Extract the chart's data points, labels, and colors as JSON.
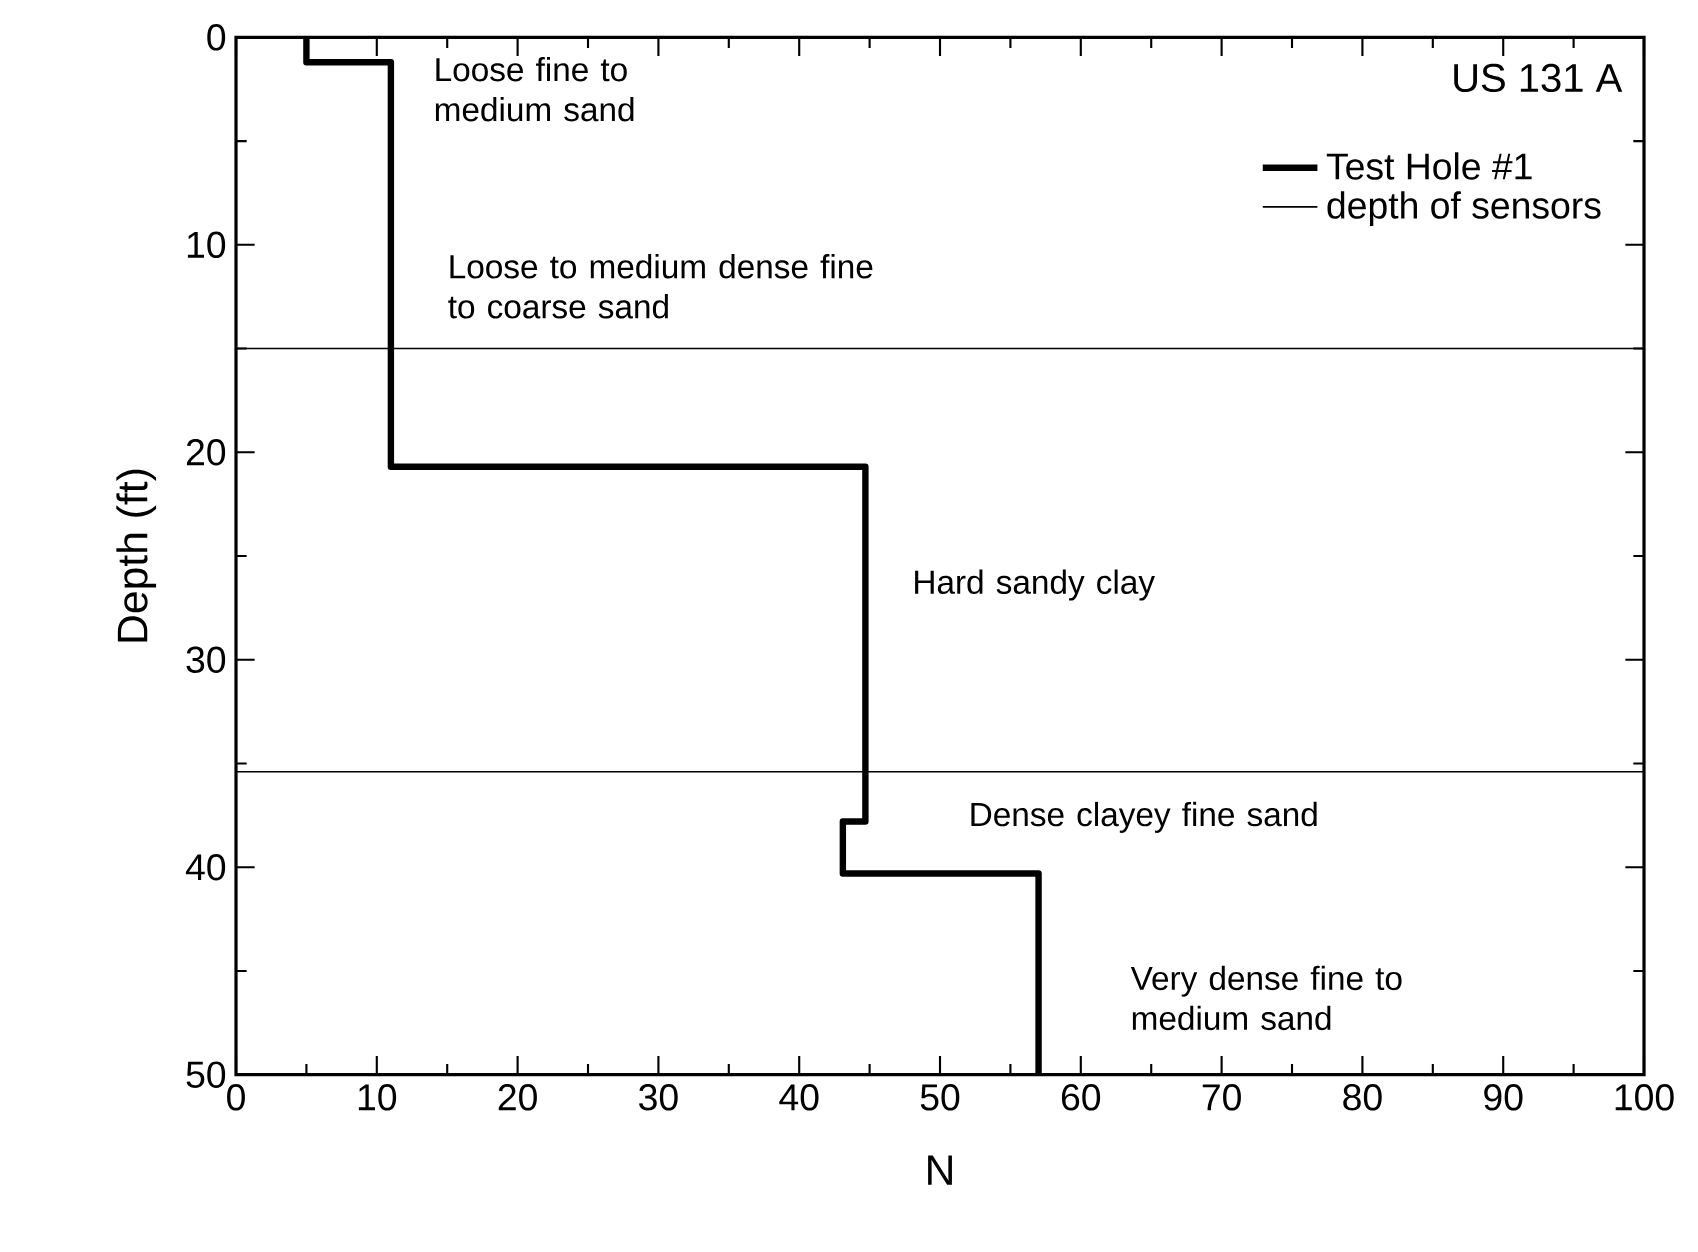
{
  "chart_data": {
    "type": "line",
    "title": "US 131 A",
    "xlabel": "N",
    "ylabel": "Depth (ft)",
    "xlim": [
      0,
      100
    ],
    "xticks": [
      0,
      10,
      20,
      30,
      40,
      50,
      60,
      70,
      80,
      90,
      100
    ],
    "ylim": [
      50,
      0
    ],
    "yticks": [
      0,
      10,
      20,
      30,
      40,
      50
    ],
    "series": [
      {
        "name": "Test Hole #1",
        "color": "#000000",
        "x": [
          5,
          5,
          11,
          11,
          44.7,
          44.7,
          43.1,
          43.1,
          57,
          57
        ],
        "values": [
          0,
          1.2,
          1.2,
          20.7,
          20.7,
          37.8,
          37.8,
          40.3,
          40.3,
          50
        ]
      }
    ],
    "ref_lines": [
      {
        "axis": "y",
        "value": 15,
        "label": "depth of sensors",
        "color": "#000000"
      },
      {
        "axis": "y",
        "value": 35.4,
        "color": "#000000"
      }
    ],
    "annotations": [
      "Loose fine to medium sand",
      "Loose to medium dense fine to coarse sand",
      "Hard sandy clay",
      "Dense clayey fine sand",
      "Very dense fine to medium sand"
    ],
    "legend": "top right",
    "grid": false,
    "marker": "none",
    "line_style": "solid"
  }
}
